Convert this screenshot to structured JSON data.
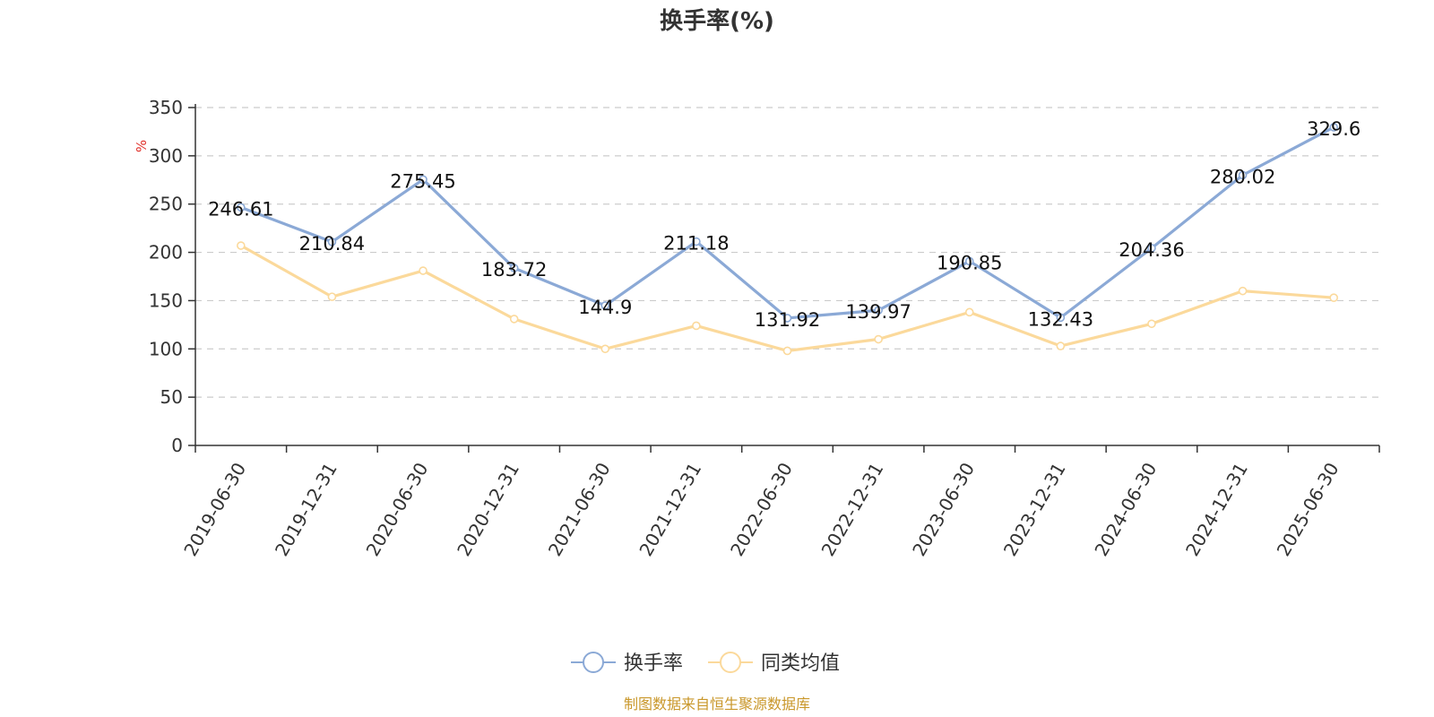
{
  "chart_data": {
    "type": "line",
    "title": "换手率(%)",
    "y_unit": "%",
    "categories": [
      "2019-06-30",
      "2019-12-31",
      "2020-06-30",
      "2020-12-31",
      "2021-06-30",
      "2021-12-31",
      "2022-06-30",
      "2022-12-31",
      "2023-06-30",
      "2023-12-31",
      "2024-06-30",
      "2024-12-31",
      "2025-06-30"
    ],
    "series": [
      {
        "name": "换手率",
        "color": "#8ba9d6",
        "values": [
          246.61,
          210.84,
          275.45,
          183.72,
          144.9,
          211.18,
          131.92,
          139.97,
          190.85,
          132.43,
          204.36,
          280.02,
          329.6
        ],
        "labels": [
          "246.61",
          "210.84",
          "275.45",
          "183.72",
          "144.9",
          "211.18",
          "131.92",
          "139.97",
          "190.85",
          "132.43",
          "204.36",
          "280.02",
          "329.6"
        ]
      },
      {
        "name": "同类均值",
        "color": "#fbd99b",
        "values": [
          207,
          154,
          181,
          131,
          100,
          124,
          98,
          110,
          138,
          103,
          126,
          160,
          153
        ]
      }
    ],
    "y_ticks": [
      0,
      50,
      100,
      150,
      200,
      250,
      300,
      350
    ],
    "ylim": [
      0,
      350
    ],
    "grid": true,
    "legend_position": "bottom-center"
  },
  "footer": {
    "source": "制图数据来自恒生聚源数据库"
  }
}
